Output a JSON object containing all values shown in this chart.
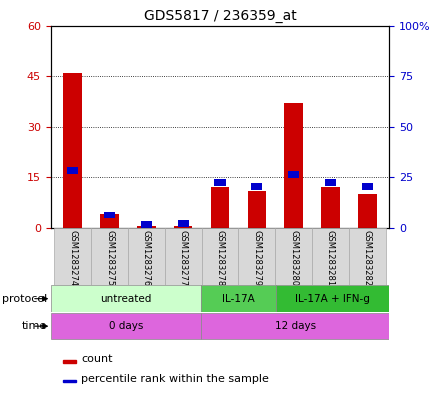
{
  "title": "GDS5817 / 236359_at",
  "samples": [
    "GSM1283274",
    "GSM1283275",
    "GSM1283276",
    "GSM1283277",
    "GSM1283278",
    "GSM1283279",
    "GSM1283280",
    "GSM1283281",
    "GSM1283282"
  ],
  "count_values": [
    46,
    4,
    0.5,
    0.5,
    12,
    11,
    37,
    12,
    10
  ],
  "percentile_values": [
    30,
    8,
    3,
    4,
    24,
    22,
    28,
    24,
    22
  ],
  "red_color": "#cc0000",
  "blue_color": "#0000cc",
  "ylim_left": [
    0,
    60
  ],
  "ylim_right": [
    0,
    100
  ],
  "yticks_left": [
    0,
    15,
    30,
    45,
    60
  ],
  "yticks_right": [
    0,
    25,
    50,
    75,
    100
  ],
  "ytick_labels_left": [
    "0",
    "15",
    "30",
    "45",
    "60"
  ],
  "ytick_labels_right": [
    "0",
    "25",
    "50",
    "75",
    "100%"
  ],
  "protocol_labels": [
    "untreated",
    "IL-17A",
    "IL-17A + IFN-g"
  ],
  "protocol_ranges": [
    [
      0,
      4
    ],
    [
      4,
      6
    ],
    [
      6,
      9
    ]
  ],
  "protocol_colors": [
    "#ccffcc",
    "#55cc55",
    "#33bb33"
  ],
  "time_labels": [
    "0 days",
    "12 days"
  ],
  "time_ranges": [
    [
      0,
      4
    ],
    [
      4,
      9
    ]
  ],
  "time_color": "#dd66dd",
  "bg_color": "#d8d8d8",
  "legend_count": "count",
  "legend_pct": "percentile rank within the sample",
  "bar_width": 0.5,
  "blue_bar_height": 2.0
}
